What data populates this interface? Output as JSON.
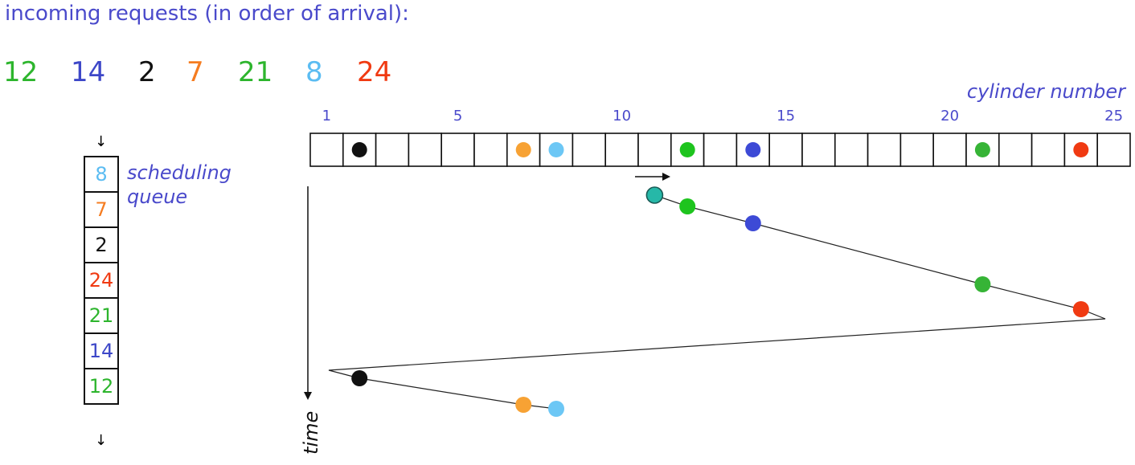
{
  "heading": "incoming requests (in order of arrival):",
  "requests": [
    {
      "label": "12",
      "color": "#2db52d"
    },
    {
      "label": "14",
      "color": "#3d47c8"
    },
    {
      "label": "2",
      "color": "#111111"
    },
    {
      "label": "7",
      "color": "#f57c20"
    },
    {
      "label": "21",
      "color": "#2db52d"
    },
    {
      "label": "8",
      "color": "#5bbcf2"
    },
    {
      "label": "24",
      "color": "#f03a12"
    }
  ],
  "queue": {
    "label_line1": "scheduling",
    "label_line2": "queue",
    "items": [
      {
        "label": "8",
        "color": "#5bbcf2"
      },
      {
        "label": "7",
        "color": "#f57c20"
      },
      {
        "label": "2",
        "color": "#111111"
      },
      {
        "label": "24",
        "color": "#f03a12"
      },
      {
        "label": "21",
        "color": "#2db52d"
      },
      {
        "label": "14",
        "color": "#3d47c8"
      },
      {
        "label": "12",
        "color": "#2db52d"
      }
    ],
    "top_arrow": "↓",
    "bottom_arrow": "↓"
  },
  "disk": {
    "axis_title": "cylinder number",
    "cylinder_count": 25,
    "tick_labels": [
      "1",
      "5",
      "10",
      "15",
      "20",
      "25"
    ],
    "tick_values": [
      1,
      5,
      10,
      15,
      20,
      25
    ],
    "start_cylinder": 11,
    "start_color": "#26b8a8",
    "direction_arrow": "→",
    "pending": [
      {
        "cylinder": 2,
        "color": "#111111"
      },
      {
        "cylinder": 7,
        "color": "#f7a234"
      },
      {
        "cylinder": 8,
        "color": "#6cc7f5"
      },
      {
        "cylinder": 12,
        "color": "#1ec41e"
      },
      {
        "cylinder": 14,
        "color": "#3d4ad6"
      },
      {
        "cylinder": 21,
        "color": "#36b436"
      },
      {
        "cylinder": 24,
        "color": "#f03a12"
      }
    ],
    "time_label": "time",
    "service_path": [
      {
        "cylinder": 11,
        "step": 0,
        "color": "#26b8a8"
      },
      {
        "cylinder": 12,
        "step": 1,
        "color": "#1ec41e"
      },
      {
        "cylinder": 14,
        "step": 2,
        "color": "#3d4ad6"
      },
      {
        "cylinder": 21,
        "step": 3,
        "color": "#36b436"
      },
      {
        "cylinder": 24,
        "step": 4,
        "color": "#f03a12"
      },
      {
        "cylinder": 25,
        "step": 5,
        "color": ""
      },
      {
        "cylinder": 1,
        "step": 6,
        "color": ""
      },
      {
        "cylinder": 2,
        "step": 7,
        "color": "#111111"
      },
      {
        "cylinder": 7,
        "step": 8,
        "color": "#f7a234"
      },
      {
        "cylinder": 8,
        "step": 9,
        "color": "#6cc7f5"
      }
    ]
  }
}
